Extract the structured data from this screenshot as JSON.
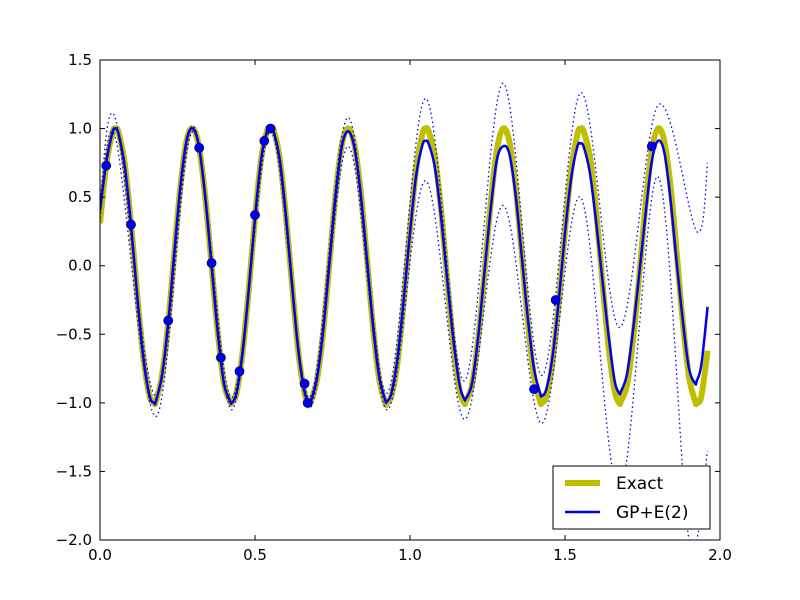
{
  "chart_data": {
    "type": "line",
    "title": "",
    "xlabel": "",
    "ylabel": "",
    "xlim": [
      0.0,
      2.0
    ],
    "ylim": [
      -2.0,
      1.5
    ],
    "xticks": [
      "0.0",
      "0.5",
      "1.0",
      "1.5",
      "2.0"
    ],
    "yticks": [
      "1.5",
      "1.0",
      "0.5",
      "0.0",
      "−0.5",
      "−1.0",
      "−1.5",
      "−2.0"
    ],
    "grid": false,
    "legend": "lower-right",
    "series": [
      {
        "name": "Exact",
        "kind": "line",
        "color": "#bfbf00",
        "x": [
          0.0,
          0.02,
          0.04,
          0.05,
          0.06,
          0.08,
          0.1,
          0.12,
          0.14,
          0.16,
          0.175,
          0.18,
          0.2,
          0.22,
          0.24,
          0.26,
          0.28,
          0.3,
          0.32,
          0.34,
          0.36,
          0.38,
          0.4,
          0.42,
          0.425,
          0.44,
          0.46,
          0.48,
          0.5,
          0.52,
          0.54,
          0.55,
          0.56,
          0.58,
          0.6,
          0.62,
          0.64,
          0.66,
          0.675,
          0.68,
          0.7,
          0.72,
          0.74,
          0.76,
          0.78,
          0.8,
          0.82,
          0.84,
          0.86,
          0.88,
          0.9,
          0.92,
          0.925,
          0.94,
          0.96,
          0.98,
          1.0,
          1.02,
          1.04,
          1.05,
          1.06,
          1.08,
          1.1,
          1.12,
          1.14,
          1.16,
          1.175,
          1.18,
          1.2,
          1.22,
          1.24,
          1.26,
          1.28,
          1.3,
          1.32,
          1.34,
          1.36,
          1.38,
          1.4,
          1.42,
          1.425,
          1.44,
          1.46,
          1.48,
          1.5,
          1.52,
          1.54,
          1.55,
          1.56,
          1.58,
          1.6,
          1.62,
          1.64,
          1.66,
          1.675,
          1.68,
          1.7,
          1.72,
          1.74,
          1.76,
          1.78,
          1.8,
          1.82,
          1.84,
          1.86,
          1.88,
          1.9,
          1.92,
          1.925,
          1.94,
          1.96
        ],
        "y": [
          0.31,
          0.73,
          0.97,
          1.0,
          0.97,
          0.74,
          0.31,
          -0.21,
          -0.67,
          -0.95,
          -1.0,
          -0.99,
          -0.8,
          -0.42,
          0.1,
          0.59,
          0.92,
          1.0,
          0.86,
          0.49,
          0.0,
          -0.49,
          -0.86,
          -0.99,
          -1.0,
          -0.93,
          -0.63,
          -0.17,
          0.35,
          0.78,
          0.99,
          1.0,
          0.99,
          0.78,
          0.36,
          -0.15,
          -0.63,
          -0.93,
          -1.0,
          -0.99,
          -0.83,
          -0.48,
          0.02,
          0.52,
          0.88,
          1.0,
          0.89,
          0.56,
          0.08,
          -0.43,
          -0.82,
          -1.0,
          -1.0,
          -0.95,
          -0.7,
          -0.26,
          0.26,
          0.71,
          0.96,
          1.0,
          0.98,
          0.8,
          0.41,
          -0.1,
          -0.58,
          -0.91,
          -1.0,
          -0.99,
          -0.87,
          -0.53,
          -0.06,
          0.45,
          0.84,
          1.0,
          0.91,
          0.59,
          0.1,
          -0.41,
          -0.81,
          -0.99,
          -1.0,
          -0.95,
          -0.7,
          -0.26,
          0.26,
          0.7,
          0.96,
          1.0,
          0.98,
          0.8,
          0.41,
          -0.1,
          -0.58,
          -0.91,
          -1.0,
          -0.99,
          -0.87,
          -0.53,
          -0.06,
          0.45,
          0.84,
          1.0,
          0.91,
          0.59,
          0.1,
          -0.41,
          -0.81,
          -0.99,
          -1.0,
          -0.95,
          -0.62
        ]
      },
      {
        "name": "GP+E(2)",
        "kind": "line",
        "color": "#0000ee",
        "x": [
          0.0,
          0.02,
          0.04,
          0.05,
          0.06,
          0.08,
          0.1,
          0.12,
          0.14,
          0.16,
          0.175,
          0.18,
          0.2,
          0.22,
          0.24,
          0.26,
          0.28,
          0.3,
          0.32,
          0.34,
          0.36,
          0.38,
          0.4,
          0.42,
          0.425,
          0.44,
          0.46,
          0.48,
          0.5,
          0.52,
          0.54,
          0.55,
          0.56,
          0.58,
          0.6,
          0.62,
          0.64,
          0.66,
          0.675,
          0.68,
          0.7,
          0.72,
          0.74,
          0.76,
          0.78,
          0.8,
          0.82,
          0.84,
          0.86,
          0.88,
          0.9,
          0.92,
          0.925,
          0.94,
          0.96,
          0.98,
          1.0,
          1.02,
          1.04,
          1.05,
          1.06,
          1.08,
          1.1,
          1.12,
          1.14,
          1.16,
          1.175,
          1.18,
          1.2,
          1.22,
          1.24,
          1.26,
          1.28,
          1.3,
          1.32,
          1.34,
          1.36,
          1.38,
          1.4,
          1.42,
          1.425,
          1.44,
          1.46,
          1.48,
          1.5,
          1.52,
          1.54,
          1.55,
          1.56,
          1.58,
          1.6,
          1.62,
          1.64,
          1.66,
          1.675,
          1.68,
          1.7,
          1.72,
          1.74,
          1.76,
          1.78,
          1.8,
          1.82,
          1.84,
          1.86,
          1.88,
          1.9,
          1.92,
          1.925,
          1.94,
          1.96
        ],
        "y": [
          0.4,
          0.75,
          0.97,
          1.0,
          0.96,
          0.72,
          0.3,
          -0.22,
          -0.67,
          -0.95,
          -1.0,
          -0.99,
          -0.8,
          -0.42,
          0.1,
          0.59,
          0.92,
          1.0,
          0.86,
          0.49,
          0.0,
          -0.49,
          -0.86,
          -0.99,
          -1.0,
          -0.93,
          -0.63,
          -0.17,
          0.35,
          0.78,
          0.99,
          1.0,
          0.98,
          0.77,
          0.36,
          -0.15,
          -0.62,
          -0.92,
          -1.0,
          -0.99,
          -0.82,
          -0.47,
          0.02,
          0.51,
          0.87,
          0.98,
          0.87,
          0.54,
          0.07,
          -0.42,
          -0.8,
          -0.98,
          -0.99,
          -0.93,
          -0.67,
          -0.24,
          0.24,
          0.66,
          0.88,
          0.91,
          0.89,
          0.72,
          0.36,
          -0.1,
          -0.54,
          -0.87,
          -0.97,
          -0.97,
          -0.86,
          -0.52,
          -0.05,
          0.41,
          0.77,
          0.87,
          0.82,
          0.53,
          0.08,
          -0.38,
          -0.75,
          -0.93,
          -0.95,
          -0.9,
          -0.66,
          -0.25,
          0.24,
          0.64,
          0.87,
          0.89,
          0.87,
          0.68,
          0.33,
          -0.09,
          -0.5,
          -0.84,
          -0.93,
          -0.92,
          -0.79,
          -0.46,
          -0.05,
          0.38,
          0.76,
          0.91,
          0.83,
          0.49,
          0.03,
          -0.4,
          -0.75,
          -0.86,
          -0.84,
          -0.72,
          -0.3
        ]
      },
      {
        "name": "",
        "kind": "dotted-upper",
        "color": "#0000ee",
        "x": [
          0.0,
          0.05,
          0.18,
          0.3,
          0.425,
          0.55,
          0.675,
          0.8,
          0.925,
          1.05,
          1.175,
          1.3,
          1.425,
          1.55,
          1.675,
          1.8,
          1.925,
          1.96
        ],
        "y": [
          0.45,
          1.07,
          -0.95,
          1.02,
          -0.96,
          1.02,
          -0.96,
          1.08,
          -0.93,
          1.22,
          -0.84,
          1.33,
          -0.8,
          1.26,
          -0.45,
          1.17,
          0.25,
          0.75
        ]
      },
      {
        "name": "",
        "kind": "dotted-lower",
        "color": "#0000ee",
        "x": [
          0.0,
          0.05,
          0.18,
          0.3,
          0.425,
          0.55,
          0.675,
          0.8,
          0.925,
          1.05,
          1.175,
          1.3,
          1.425,
          1.55,
          1.675,
          1.8,
          1.9,
          1.96
        ],
        "y": [
          0.35,
          0.93,
          -1.1,
          0.98,
          -1.05,
          0.98,
          -1.04,
          0.87,
          -1.05,
          0.62,
          -1.12,
          0.44,
          -1.15,
          0.5,
          -1.65,
          0.65,
          -2.0,
          -1.35
        ]
      },
      {
        "name": "",
        "kind": "points",
        "color": "#0000ee",
        "x": [
          0.02,
          0.1,
          0.22,
          0.32,
          0.36,
          0.39,
          0.45,
          0.5,
          0.53,
          0.55,
          0.66,
          0.67,
          1.4,
          1.47,
          1.78
        ],
        "y": [
          0.73,
          0.3,
          -0.4,
          0.86,
          0.02,
          -0.67,
          -0.77,
          0.37,
          0.91,
          1.0,
          -0.86,
          -1.0,
          -0.9,
          -0.25,
          0.87
        ]
      }
    ]
  }
}
